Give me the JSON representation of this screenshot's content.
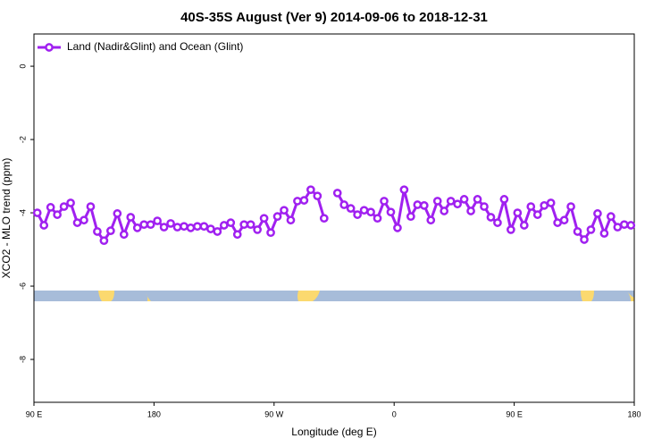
{
  "chart_data": {
    "type": "line",
    "title": "40S-35S August (Ver 9)   2014-09-06 to 2018-12-31",
    "xlabel": "Longitude (deg E)",
    "ylabel": "XCO2 - MLO trend (ppm)",
    "legend": "upper left",
    "xlim": [
      90,
      540
    ],
    "xticks": [
      {
        "value": 90,
        "label": "90 E"
      },
      {
        "value": 180,
        "label": "180"
      },
      {
        "value": 270,
        "label": "90 W"
      },
      {
        "value": 360,
        "label": "0"
      },
      {
        "value": 450,
        "label": "90 E"
      },
      {
        "value": 540,
        "label": "180"
      }
    ],
    "ylim": [
      -9.17,
      0.88
    ],
    "yticks": [
      0,
      -2,
      -4,
      -6,
      -8
    ],
    "x": [
      92.5,
      97.5,
      102.5,
      107.5,
      112.5,
      117.5,
      122.5,
      127.5,
      132.5,
      137.5,
      142.5,
      147.5,
      152.5,
      157.5,
      162.5,
      167.5,
      172.5,
      177.5,
      182.5,
      187.5,
      192.5,
      197.5,
      202.5,
      207.5,
      212.5,
      217.5,
      222.5,
      227.5,
      232.5,
      237.5,
      242.5,
      247.5,
      252.5,
      257.5,
      262.5,
      267.5,
      272.5,
      277.5,
      282.5,
      287.5,
      292.5,
      297.5,
      302.5,
      307.5,
      312.5,
      317.5,
      322.5,
      327.5,
      332.5,
      337.5,
      342.5,
      347.5,
      352.5,
      357.5,
      362.5,
      367.5,
      372.5,
      377.5,
      382.5,
      387.5,
      392.5,
      397.5,
      402.5,
      407.5,
      412.5,
      417.5,
      422.5,
      427.5,
      432.5,
      437.5,
      442.5,
      447.5,
      452.5,
      457.5,
      462.5,
      467.5,
      472.5,
      477.5,
      482.5,
      487.5,
      492.5,
      497.5,
      502.5,
      507.5,
      512.5,
      517.5,
      522.5,
      527.5,
      532.5,
      537.5
    ],
    "series": [
      {
        "name": "Land (Nadir&Glint) and Ocean (Glint)",
        "color": "#a020f0",
        "values": [
          -4.0,
          -4.34,
          -3.85,
          -4.05,
          -3.83,
          -3.73,
          -4.27,
          -4.2,
          -3.83,
          -4.51,
          -4.76,
          -4.49,
          -4.02,
          -4.59,
          -4.12,
          -4.41,
          -4.32,
          -4.32,
          -4.22,
          -4.39,
          -4.29,
          -4.39,
          -4.37,
          -4.41,
          -4.37,
          -4.37,
          -4.44,
          -4.51,
          -4.34,
          -4.27,
          -4.59,
          -4.32,
          -4.32,
          -4.46,
          -4.15,
          -4.54,
          -4.1,
          -3.93,
          -4.2,
          -3.68,
          -3.66,
          -3.37,
          -3.54,
          -4.15,
          null,
          -3.46,
          -3.78,
          -3.88,
          -4.05,
          -3.93,
          -3.98,
          -4.15,
          -3.68,
          -3.98,
          -4.41,
          -3.37,
          -4.1,
          -3.78,
          -3.8,
          -4.2,
          -3.68,
          -3.95,
          -3.68,
          -3.76,
          -3.63,
          -3.95,
          -3.63,
          -3.83,
          -4.12,
          -4.27,
          -3.63,
          -4.46,
          -4.0,
          -4.34,
          -3.83,
          -4.05,
          -3.8,
          -3.73,
          -4.27,
          -4.2,
          -3.83,
          -4.51,
          -4.73,
          -4.46,
          -4.02,
          -4.56,
          -4.1,
          -4.39,
          -4.32,
          -4.34
        ]
      }
    ]
  }
}
